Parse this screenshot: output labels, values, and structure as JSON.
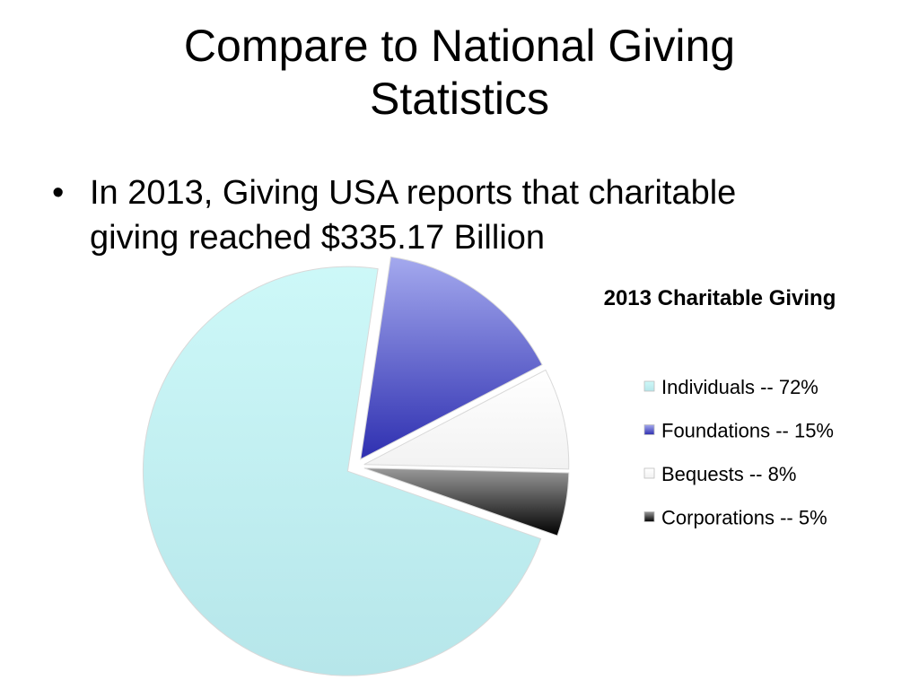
{
  "slide": {
    "title_line1": "Compare to National Giving",
    "title_line2": "Statistics",
    "bullet_marker": "•",
    "bullet_line1": "In 2013, Giving USA reports that charitable",
    "bullet_line2": "giving reached $335.17 Billion"
  },
  "chart_data": {
    "type": "pie",
    "title": "2013 Charitable Giving",
    "legend_position": "right",
    "categories": [
      "Individuals -- 72%",
      "Foundations -- 15%",
      "Bequests -- 8%",
      "Corporations -- 5%"
    ],
    "values": [
      72,
      15,
      8,
      5
    ],
    "exploded": [
      true,
      true,
      true,
      true
    ],
    "colors": [
      {
        "light": "#cdf8f8",
        "dark": "#b6e6ea"
      },
      {
        "light": "#a4a9ee",
        "dark": "#2e2fb0"
      },
      {
        "light": "#ffffff",
        "dark": "#f2f2f2"
      },
      {
        "light": "#9a9a9a",
        "dark": "#000000"
      }
    ]
  }
}
